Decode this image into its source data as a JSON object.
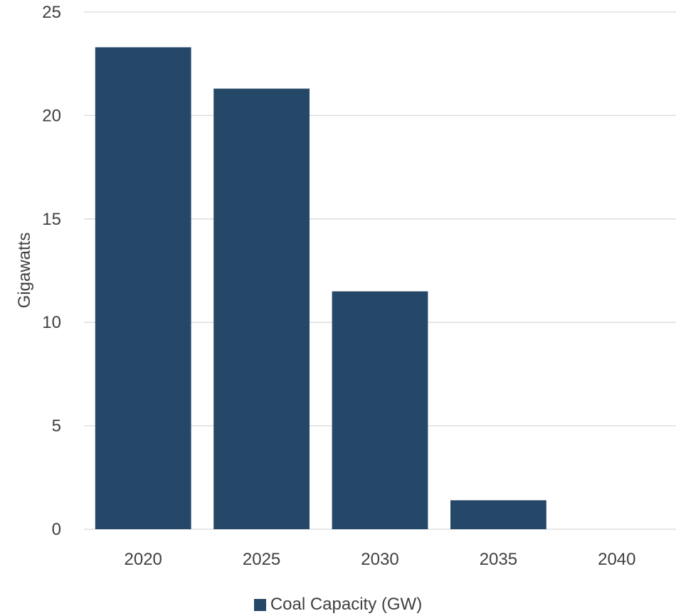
{
  "chart_data": {
    "type": "bar",
    "categories": [
      "2020",
      "2025",
      "2030",
      "2035",
      "2040"
    ],
    "series": [
      {
        "name": "Coal Capacity (GW)",
        "values": [
          23.3,
          21.3,
          11.5,
          1.4,
          0
        ],
        "color": "#264868"
      }
    ],
    "title": "",
    "xlabel": "",
    "ylabel": "Gigawatts",
    "ylim": [
      0,
      25
    ],
    "yticks": [
      0,
      5,
      10,
      15,
      20,
      25
    ],
    "grid": true,
    "legend_position": "bottom"
  }
}
